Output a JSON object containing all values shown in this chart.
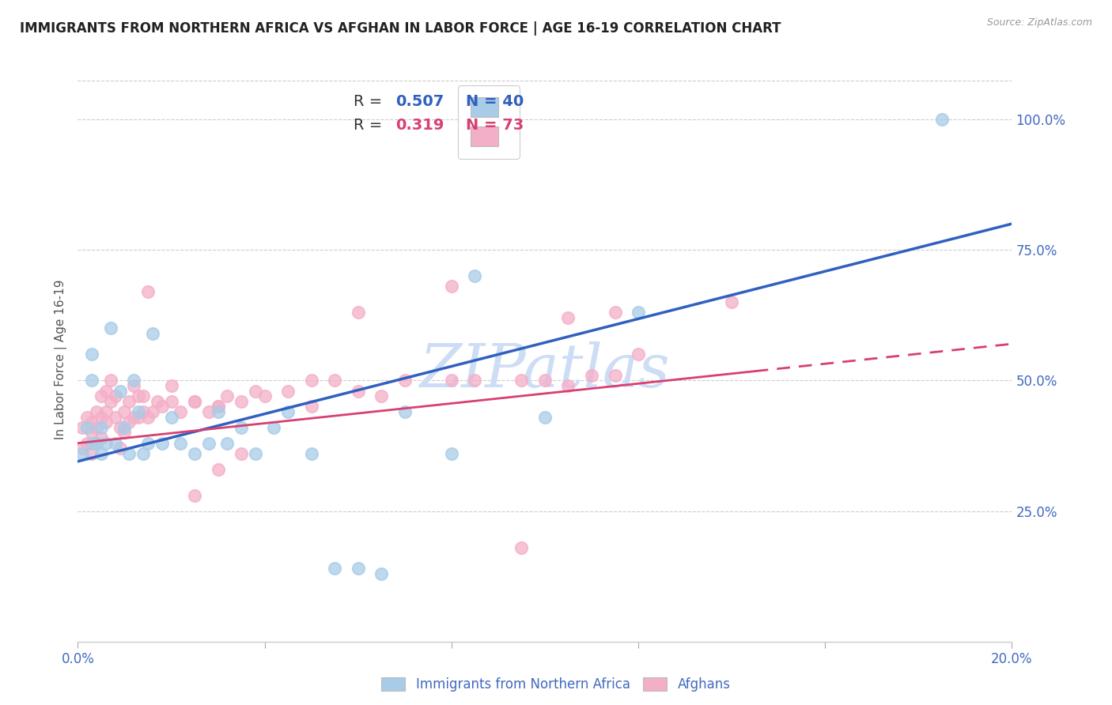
{
  "title": "IMMIGRANTS FROM NORTHERN AFRICA VS AFGHAN IN LABOR FORCE | AGE 16-19 CORRELATION CHART",
  "source": "Source: ZipAtlas.com",
  "ylabel": "In Labor Force | Age 16-19",
  "xlim": [
    0.0,
    0.2
  ],
  "ylim": [
    0.0,
    1.08
  ],
  "xticks": [
    0.0,
    0.04,
    0.08,
    0.12,
    0.16,
    0.2
  ],
  "xticklabels": [
    "0.0%",
    "",
    "",
    "",
    "",
    "20.0%"
  ],
  "yticks_right": [
    0.25,
    0.5,
    0.75,
    1.0
  ],
  "ytick_labels_right": [
    "25.0%",
    "50.0%",
    "75.0%",
    "100.0%"
  ],
  "watermark": "ZIPatlas",
  "blue_r": "0.507",
  "blue_n": "40",
  "pink_r": "0.319",
  "pink_n": "73",
  "blue_color": "#a8cce8",
  "pink_color": "#f4afc8",
  "trend_blue": "#3060c0",
  "trend_pink": "#d84070",
  "title_color": "#222222",
  "axis_label_color": "#4169c0",
  "watermark_color": "#ccddf5",
  "blue_x": [
    0.001,
    0.002,
    0.003,
    0.003,
    0.004,
    0.005,
    0.005,
    0.006,
    0.007,
    0.008,
    0.009,
    0.01,
    0.011,
    0.012,
    0.013,
    0.014,
    0.015,
    0.016,
    0.018,
    0.02,
    0.022,
    0.025,
    0.028,
    0.03,
    0.032,
    0.035,
    0.038,
    0.042,
    0.045,
    0.05,
    0.055,
    0.06,
    0.065,
    0.07,
    0.08,
    0.085,
    0.1,
    0.12,
    0.185,
    0.003
  ],
  "blue_y": [
    0.36,
    0.41,
    0.38,
    0.55,
    0.38,
    0.41,
    0.36,
    0.38,
    0.6,
    0.38,
    0.48,
    0.41,
    0.36,
    0.5,
    0.44,
    0.36,
    0.38,
    0.59,
    0.38,
    0.43,
    0.38,
    0.36,
    0.38,
    0.44,
    0.38,
    0.41,
    0.36,
    0.41,
    0.44,
    0.36,
    0.14,
    0.14,
    0.13,
    0.44,
    0.36,
    0.7,
    0.43,
    0.63,
    1.0,
    0.5
  ],
  "pink_x": [
    0.001,
    0.001,
    0.002,
    0.002,
    0.003,
    0.003,
    0.003,
    0.004,
    0.004,
    0.004,
    0.005,
    0.005,
    0.005,
    0.006,
    0.006,
    0.006,
    0.007,
    0.007,
    0.008,
    0.008,
    0.009,
    0.009,
    0.01,
    0.01,
    0.011,
    0.011,
    0.012,
    0.012,
    0.013,
    0.013,
    0.014,
    0.014,
    0.015,
    0.016,
    0.017,
    0.018,
    0.02,
    0.022,
    0.025,
    0.028,
    0.03,
    0.032,
    0.035,
    0.038,
    0.04,
    0.045,
    0.05,
    0.055,
    0.06,
    0.065,
    0.015,
    0.02,
    0.025,
    0.03,
    0.095,
    0.08,
    0.105,
    0.115,
    0.12,
    0.14,
    0.05,
    0.03,
    0.095,
    0.105,
    0.115,
    0.08,
    0.1,
    0.11,
    0.06,
    0.07,
    0.025,
    0.035,
    0.085
  ],
  "pink_y": [
    0.37,
    0.41,
    0.38,
    0.43,
    0.36,
    0.42,
    0.4,
    0.41,
    0.44,
    0.38,
    0.39,
    0.43,
    0.47,
    0.44,
    0.48,
    0.42,
    0.46,
    0.5,
    0.43,
    0.47,
    0.37,
    0.41,
    0.4,
    0.44,
    0.42,
    0.46,
    0.43,
    0.49,
    0.43,
    0.47,
    0.44,
    0.47,
    0.43,
    0.44,
    0.46,
    0.45,
    0.46,
    0.44,
    0.46,
    0.44,
    0.45,
    0.47,
    0.46,
    0.48,
    0.47,
    0.48,
    0.45,
    0.5,
    0.48,
    0.47,
    0.67,
    0.49,
    0.28,
    0.33,
    0.18,
    0.5,
    0.49,
    0.51,
    0.55,
    0.65,
    0.5,
    0.45,
    0.5,
    0.62,
    0.63,
    0.68,
    0.5,
    0.51,
    0.63,
    0.5,
    0.46,
    0.36,
    0.5
  ],
  "blue_trend_x0": 0.0,
  "blue_trend_y0": 0.345,
  "blue_trend_x1": 0.2,
  "blue_trend_y1": 0.8,
  "pink_trend_x0": 0.0,
  "pink_trend_y0": 0.38,
  "pink_trend_x1": 0.2,
  "pink_trend_y1": 0.57
}
